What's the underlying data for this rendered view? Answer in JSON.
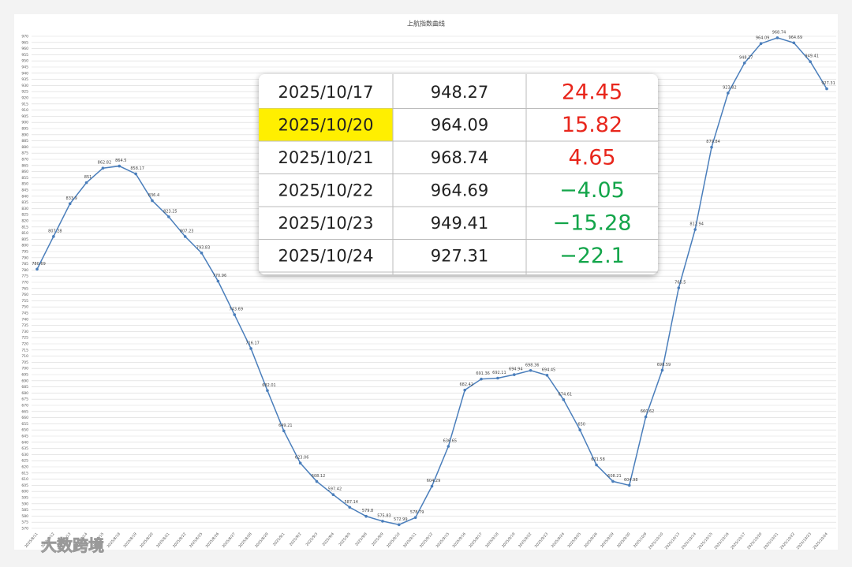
{
  "chart_data": {
    "type": "line",
    "title": "上航指数曲线",
    "color": "#4a7ebb",
    "grid": true,
    "categories": [
      "2025/8/11",
      "2025/8/12",
      "2025/8/13",
      "2025/8/14",
      "2025/8/15",
      "2025/8/18",
      "2025/8/19",
      "2025/8/20",
      "2025/8/21",
      "2025/8/22",
      "2025/8/25",
      "2025/8/26",
      "2025/8/27",
      "2025/8/28",
      "2025/8/29",
      "2025/9/1",
      "2025/9/2",
      "2025/9/3",
      "2025/9/4",
      "2025/9/5",
      "2025/9/8",
      "2025/9/9",
      "2025/9/10",
      "2025/9/11",
      "2025/9/12",
      "2025/9/15",
      "2025/9/16",
      "2025/9/17",
      "2025/9/18",
      "2025/9/19",
      "2025/9/22",
      "2025/9/23",
      "2025/9/24",
      "2025/9/25",
      "2025/9/26",
      "2025/9/29",
      "2025/9/30",
      "2025/10/9",
      "2025/10/10",
      "2025/10/13",
      "2025/10/14",
      "2025/10/15",
      "2025/10/16",
      "2025/10/17",
      "2025/10/20",
      "2025/10/21",
      "2025/10/22",
      "2025/10/23",
      "2025/10/24"
    ],
    "values": [
      780.69,
      807.28,
      833.9,
      851.0,
      862.82,
      864.5,
      858.17,
      836.4,
      823.25,
      807.23,
      793.83,
      770.96,
      743.69,
      716.17,
      682.01,
      649.21,
      623.06,
      608.12,
      597.42,
      587.14,
      579.8,
      575.83,
      572.99,
      578.79,
      604.29,
      636.65,
      682.42,
      691.36,
      692.11,
      694.94,
      698.36,
      694.45,
      674.61,
      650,
      621.58,
      608.21,
      604.98,
      660.62,
      698.59,
      765.5,
      812.94,
      879.84,
      923.82,
      948.27,
      964.09,
      968.74,
      964.69,
      949.41,
      927.31
    ],
    "ylim": [
      570,
      970
    ],
    "yticks": [
      570,
      575,
      580,
      585,
      590,
      595,
      600,
      605,
      610,
      615,
      620,
      625,
      630,
      635,
      640,
      645,
      650,
      655,
      660,
      665,
      670,
      675,
      680,
      685,
      690,
      695,
      700,
      705,
      710,
      715,
      720,
      725,
      730,
      735,
      740,
      745,
      750,
      755,
      760,
      765,
      770,
      775,
      780,
      785,
      790,
      795,
      800,
      805,
      810,
      815,
      820,
      825,
      830,
      835,
      840,
      845,
      850,
      855,
      860,
      865,
      870,
      875,
      880,
      885,
      890,
      895,
      900,
      905,
      910,
      915,
      920,
      925,
      930,
      935,
      940,
      945,
      950,
      955,
      960,
      965,
      970
    ]
  },
  "table": {
    "positive_color": "#e8261c",
    "negative_color": "#13a54a",
    "highlight_color": "#ffef00",
    "rows": [
      [
        "2025/10/17",
        "948.27",
        "24.45"
      ],
      [
        "2025/10/20",
        "964.09",
        "15.82"
      ],
      [
        "2025/10/21",
        "968.74",
        "4.65"
      ],
      [
        "2025/10/22",
        "964.69",
        "−4.05"
      ],
      [
        "2025/10/23",
        "949.41",
        "−15.28"
      ],
      [
        "2025/10/24",
        "927.31",
        "−22.1"
      ]
    ],
    "highlight_row": 1
  },
  "watermark": "大数跨境"
}
